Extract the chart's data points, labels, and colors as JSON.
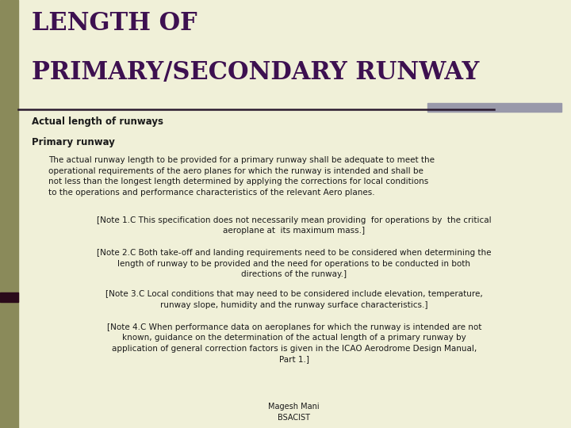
{
  "bg_color": "#f0f0d8",
  "title_line1": "LENGTH OF",
  "title_line2": "PRIMARY/SECONDARY RUNWAY",
  "title_color": "#3d1050",
  "title_fontsize": 22,
  "header_line_color": "#2a1a2e",
  "header_rect_color": "#9999aa",
  "left_bar_color": "#8a8a5a",
  "left_bar_width": 0.032,
  "section1_label": "Actual length of runways",
  "section2_label": "Primary runway",
  "para1": "The actual runway length to be provided for a primary runway shall be adequate to meet the\noperational requirements of the aero planes for which the runway is intended and shall be\nnot less than the longest length determined by applying the corrections for local conditions\nto the operations and performance characteristics of the relevant Aero planes.",
  "note1": "[Note 1.C This specification does not necessarily mean providing  for operations by  the critical\naeroplane at  its maximum mass.]",
  "note2": "[Note 2.C Both take-off and landing requirements need to be considered when determining the\nlength of runway to be provided and the need for operations to be conducted in both\ndirections of the runway.]",
  "note3": "[Note 3.C Local conditions that may need to be considered include elevation, temperature,\nrunway slope, humidity and the runway surface characteristics.]",
  "note4": "[Note 4.C When performance data on aeroplanes for which the runway is intended are not\nknown, guidance on the determination of the actual length of a primary runway by\napplication of general correction factors is given in the ICAO Aerodrome Design Manual,\nPart 1.]",
  "footer": "Magesh Mani\nBSACIST",
  "text_color": "#1a1a1a",
  "section_fontsize": 8.5,
  "body_fontsize": 7.5,
  "footer_fontsize": 7.0,
  "accent_bar_color": "#2a0a1a"
}
